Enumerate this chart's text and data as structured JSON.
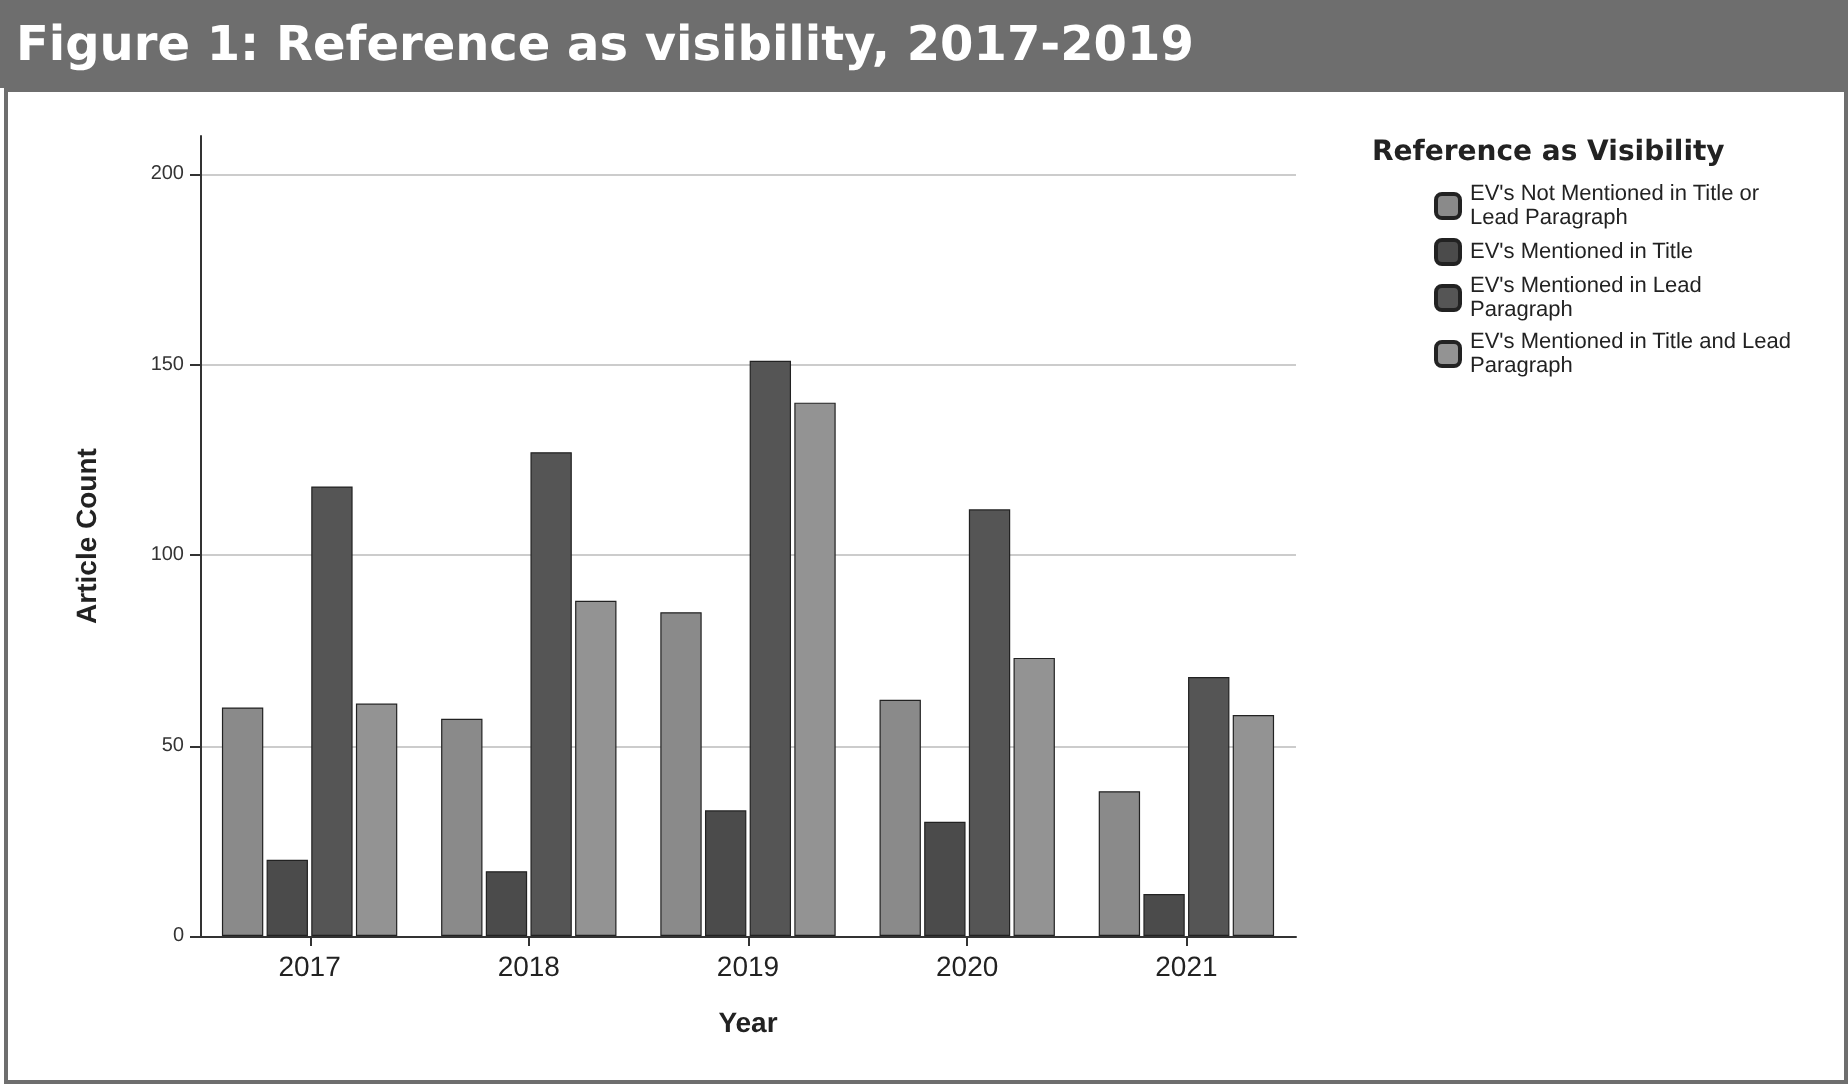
{
  "chart_data": {
    "type": "bar",
    "title": "Figure 1: Reference as visibility, 2017-2019",
    "xlabel": "Year",
    "ylabel": "Article Count",
    "legend_title": "Reference as Visibility",
    "categories": [
      "2017",
      "2018",
      "2019",
      "2020",
      "2021"
    ],
    "series": [
      {
        "name": "EV's Not Mentioned in Title or Lead Paragraph",
        "color": "#8a8a8a",
        "values": [
          60,
          57,
          85,
          62,
          38
        ]
      },
      {
        "name": "EV's Mentioned in Title",
        "color": "#4b4b4b",
        "values": [
          20,
          17,
          33,
          30,
          11
        ]
      },
      {
        "name": "EV's Mentioned in Lead Paragraph",
        "color": "#555555",
        "values": [
          118,
          127,
          151,
          112,
          68
        ]
      },
      {
        "name": "EV's Mentioned in Title and Lead Paragraph",
        "color": "#939393",
        "values": [
          61,
          88,
          140,
          73,
          58
        ]
      }
    ],
    "ylim": [
      0,
      210
    ],
    "yticks": [
      0,
      50,
      100,
      150,
      200
    ],
    "grid": "y",
    "legend": "right"
  }
}
